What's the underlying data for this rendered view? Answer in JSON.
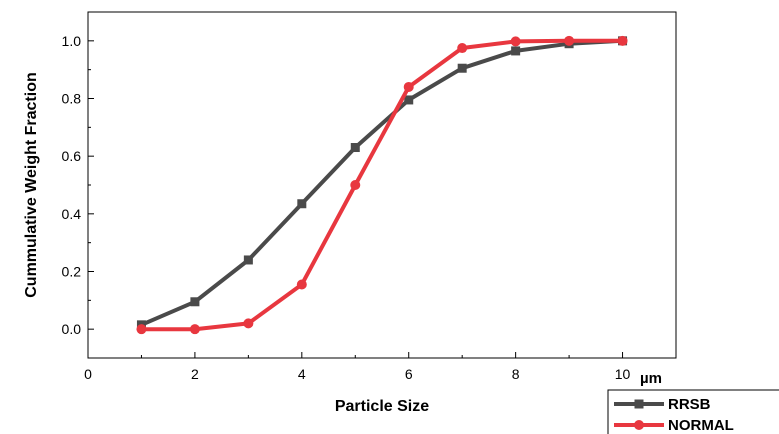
{
  "chart_data": {
    "type": "line",
    "xlabel": "Particle Size",
    "ylabel": "Cummulative Weight Fraction",
    "x_unit": "µm",
    "xlim": [
      0,
      11
    ],
    "ylim": [
      -0.1,
      1.1
    ],
    "x_ticks": [
      "0",
      "2",
      "4",
      "6",
      "8",
      "10"
    ],
    "y_ticks": [
      "0.0",
      "0.2",
      "0.4",
      "0.6",
      "0.8",
      "1.0"
    ],
    "legend_position": "bottom-right",
    "series": [
      {
        "name": "RRSB",
        "color": "#4a4a4a",
        "marker": "square",
        "x": [
          1,
          2,
          3,
          4,
          5,
          6,
          7,
          8,
          9,
          10
        ],
        "y": [
          0.015,
          0.095,
          0.24,
          0.435,
          0.63,
          0.795,
          0.905,
          0.965,
          0.99,
          1.0
        ]
      },
      {
        "name": "NORMAL",
        "color": "#e8373f",
        "marker": "circle",
        "x": [
          1,
          2,
          3,
          4,
          5,
          6,
          7,
          8,
          9,
          10
        ],
        "y": [
          0.0,
          0.0,
          0.02,
          0.155,
          0.5,
          0.84,
          0.975,
          0.998,
          1.0,
          1.0
        ]
      }
    ]
  }
}
